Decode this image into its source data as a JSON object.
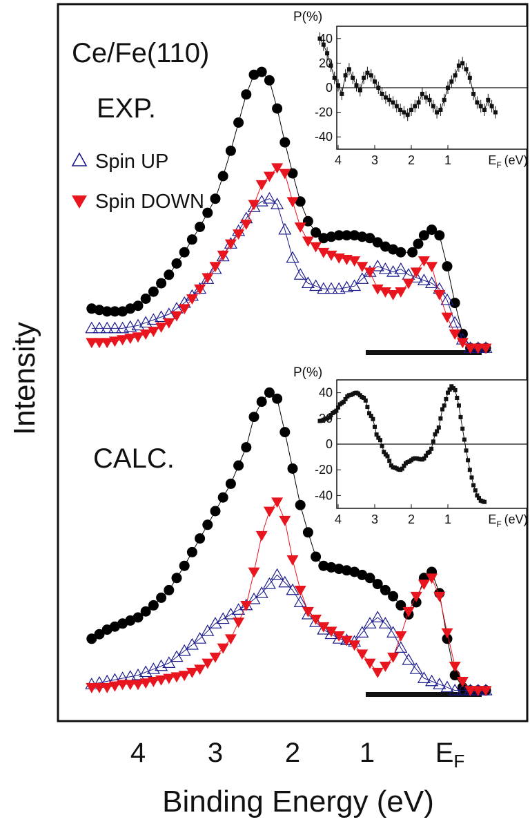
{
  "colors": {
    "total": "#000000",
    "spin_up": "#1a1a8c",
    "spin_down": "#e8141e",
    "axis": "#111111"
  },
  "main": {
    "ylabel": "Intensity",
    "xlabel": "Binding Energy (eV)",
    "xticks": [
      "4",
      "3",
      "2",
      "1"
    ],
    "ef_label": "E",
    "ef_sub": "F"
  },
  "top": {
    "sample_label": "Ce/Fe(110)",
    "label": "EXP.",
    "legend_up": "Spin UP",
    "legend_down": "Spin DOWN"
  },
  "bottom": {
    "label": "CALC."
  },
  "inset_exp": {
    "ylabel": "P(%)",
    "yticks": [
      "40",
      "20",
      "0",
      "-20",
      "-40"
    ],
    "xticks": [
      "4",
      "3",
      "2",
      "1"
    ],
    "ef_label": "E",
    "ef_sub": "F",
    "ef_unit": "(eV)"
  },
  "inset_calc": {
    "ylabel": "P(%)",
    "yticks": [
      "40",
      "20",
      "0",
      "-20",
      "-40"
    ],
    "xticks": [
      "4",
      "3",
      "2",
      "1"
    ],
    "ef_label": "E",
    "ef_sub": "F",
    "ef_unit": "(eV)"
  },
  "chart_data": [
    {
      "type": "scatter",
      "panel": "EXP.",
      "xlabel": "Binding Energy (eV)",
      "ylabel": "Intensity",
      "x_reversed": true,
      "xlim": [
        4.7,
        -0.5
      ],
      "ylim": [
        0,
        1
      ],
      "series": [
        {
          "name": "total",
          "marker": "circle",
          "x": [
            4.6,
            4.4,
            4.2,
            4.0,
            3.8,
            3.6,
            3.4,
            3.2,
            3.0,
            2.9,
            2.8,
            2.7,
            2.6,
            2.5,
            2.4,
            2.3,
            2.2,
            2.1,
            2.0,
            1.9,
            1.8,
            1.7,
            1.6,
            1.4,
            1.2,
            1.0,
            0.8,
            0.6,
            0.45,
            0.3,
            0.2,
            0.1,
            0.0,
            -0.1,
            -0.2,
            -0.3,
            -0.5
          ],
          "y": [
            0.15,
            0.14,
            0.14,
            0.16,
            0.21,
            0.27,
            0.35,
            0.44,
            0.54,
            0.62,
            0.71,
            0.81,
            0.91,
            0.98,
            0.99,
            0.96,
            0.86,
            0.74,
            0.63,
            0.53,
            0.46,
            0.42,
            0.4,
            0.41,
            0.41,
            0.4,
            0.37,
            0.35,
            0.35,
            0.41,
            0.43,
            0.41,
            0.3,
            0.17,
            0.06,
            0.01,
            0.01
          ]
        },
        {
          "name": "Spin UP",
          "marker": "triangle-up-open",
          "x": [
            4.6,
            4.4,
            4.2,
            4.0,
            3.8,
            3.6,
            3.4,
            3.2,
            3.0,
            2.8,
            2.6,
            2.5,
            2.4,
            2.3,
            2.2,
            2.1,
            2.0,
            1.9,
            1.8,
            1.6,
            1.4,
            1.2,
            1.0,
            0.9,
            0.8,
            0.7,
            0.6,
            0.5,
            0.4,
            0.3,
            0.2,
            0.1,
            0.0,
            -0.1,
            -0.2,
            -0.3,
            -0.5
          ],
          "y": [
            0.08,
            0.08,
            0.08,
            0.09,
            0.11,
            0.13,
            0.17,
            0.22,
            0.29,
            0.38,
            0.47,
            0.51,
            0.53,
            0.54,
            0.52,
            0.43,
            0.33,
            0.27,
            0.24,
            0.22,
            0.22,
            0.23,
            0.28,
            0.3,
            0.29,
            0.28,
            0.29,
            0.27,
            0.26,
            0.25,
            0.24,
            0.22,
            0.18,
            0.1,
            0.04,
            0.01,
            0.01
          ]
        },
        {
          "name": "Spin DOWN",
          "marker": "triangle-down-filled",
          "x": [
            4.6,
            4.4,
            4.2,
            4.0,
            3.8,
            3.6,
            3.4,
            3.2,
            3.0,
            2.8,
            2.6,
            2.5,
            2.4,
            2.3,
            2.2,
            2.1,
            2.0,
            1.9,
            1.8,
            1.6,
            1.4,
            1.2,
            1.0,
            0.9,
            0.8,
            0.7,
            0.6,
            0.5,
            0.4,
            0.3,
            0.2,
            0.1,
            0.0,
            -0.1,
            -0.2,
            -0.3,
            -0.5
          ],
          "y": [
            0.03,
            0.03,
            0.04,
            0.05,
            0.07,
            0.1,
            0.15,
            0.22,
            0.3,
            0.38,
            0.45,
            0.52,
            0.59,
            0.62,
            0.65,
            0.63,
            0.53,
            0.44,
            0.39,
            0.35,
            0.33,
            0.32,
            0.28,
            0.22,
            0.21,
            0.2,
            0.21,
            0.24,
            0.28,
            0.32,
            0.3,
            0.2,
            0.12,
            0.06,
            0.03,
            0.01,
            0.01
          ]
        }
      ]
    },
    {
      "type": "scatter",
      "panel": "CALC.",
      "xlabel": "Binding Energy (eV)",
      "ylabel": "Intensity",
      "x_reversed": true,
      "xlim": [
        4.7,
        -0.5
      ],
      "ylim": [
        0,
        1
      ],
      "series": [
        {
          "name": "total",
          "marker": "circle",
          "x": [
            4.6,
            4.4,
            4.2,
            4.0,
            3.8,
            3.6,
            3.4,
            3.2,
            3.0,
            2.8,
            2.6,
            2.5,
            2.4,
            2.3,
            2.2,
            2.1,
            2.0,
            1.9,
            1.8,
            1.7,
            1.6,
            1.4,
            1.2,
            1.0,
            0.9,
            0.8,
            0.7,
            0.6,
            0.5,
            0.4,
            0.3,
            0.2,
            0.1,
            0.0,
            -0.1,
            -0.2,
            -0.3,
            -0.5
          ],
          "y": [
            0.18,
            0.21,
            0.23,
            0.25,
            0.29,
            0.34,
            0.42,
            0.51,
            0.6,
            0.69,
            0.81,
            0.91,
            0.96,
            0.99,
            0.97,
            0.86,
            0.74,
            0.62,
            0.53,
            0.45,
            0.42,
            0.41,
            0.4,
            0.38,
            0.36,
            0.34,
            0.32,
            0.29,
            0.26,
            0.3,
            0.38,
            0.4,
            0.33,
            0.18,
            0.06,
            0.02,
            0.01,
            0.01
          ]
        },
        {
          "name": "Spin UP",
          "marker": "triangle-up-open",
          "x": [
            4.6,
            4.4,
            4.2,
            4.0,
            3.8,
            3.6,
            3.4,
            3.2,
            3.0,
            2.8,
            2.6,
            2.4,
            2.2,
            2.0,
            1.8,
            1.6,
            1.4,
            1.2,
            1.0,
            0.9,
            0.8,
            0.7,
            0.6,
            0.5,
            0.4,
            0.3,
            0.2,
            0.1,
            0.0,
            -0.1,
            -0.2,
            -0.3,
            -0.5
          ],
          "y": [
            0.03,
            0.04,
            0.05,
            0.06,
            0.08,
            0.1,
            0.14,
            0.18,
            0.23,
            0.26,
            0.29,
            0.33,
            0.39,
            0.34,
            0.26,
            0.21,
            0.18,
            0.17,
            0.23,
            0.25,
            0.23,
            0.2,
            0.15,
            0.11,
            0.08,
            0.05,
            0.04,
            0.03,
            0.02,
            0.01,
            0.01,
            0.01,
            0.01
          ]
        },
        {
          "name": "Spin DOWN",
          "marker": "triangle-down-filled",
          "x": [
            4.6,
            4.4,
            4.2,
            4.0,
            3.8,
            3.6,
            3.4,
            3.2,
            3.0,
            2.8,
            2.6,
            2.5,
            2.4,
            2.3,
            2.2,
            2.1,
            2.0,
            1.9,
            1.8,
            1.6,
            1.4,
            1.2,
            1.0,
            0.9,
            0.8,
            0.7,
            0.6,
            0.5,
            0.4,
            0.3,
            0.2,
            0.1,
            0.0,
            -0.1,
            -0.2,
            -0.3,
            -0.5
          ],
          "y": [
            0.02,
            0.02,
            0.03,
            0.03,
            0.04,
            0.05,
            0.06,
            0.08,
            0.12,
            0.18,
            0.29,
            0.4,
            0.52,
            0.6,
            0.63,
            0.57,
            0.44,
            0.34,
            0.27,
            0.22,
            0.19,
            0.16,
            0.1,
            0.07,
            0.09,
            0.12,
            0.19,
            0.27,
            0.32,
            0.36,
            0.38,
            0.32,
            0.2,
            0.09,
            0.04,
            0.01,
            0.01
          ]
        }
      ]
    },
    {
      "type": "scatter",
      "panel": "inset EXP.",
      "ylabel": "P(%)",
      "x_reversed": true,
      "xlim": [
        4.7,
        -0.6
      ],
      "ylim": [
        -48,
        48
      ],
      "series": [
        {
          "name": "P",
          "x": [
            4.5,
            4.4,
            4.3,
            4.2,
            4.1,
            4.0,
            3.9,
            3.8,
            3.7,
            3.6,
            3.5,
            3.4,
            3.3,
            3.2,
            3.1,
            3.0,
            2.9,
            2.8,
            2.7,
            2.6,
            2.5,
            2.4,
            2.3,
            2.2,
            2.1,
            2.0,
            1.9,
            1.8,
            1.7,
            1.6,
            1.5,
            1.4,
            1.3,
            1.2,
            1.1,
            1.0,
            0.9,
            0.8,
            0.7,
            0.6,
            0.5,
            0.4,
            0.3,
            0.2,
            0.1,
            0.0,
            -0.1,
            -0.2,
            -0.3
          ],
          "y": [
            40,
            35,
            28,
            18,
            8,
            2,
            -5,
            10,
            15,
            8,
            2,
            -2,
            8,
            12,
            10,
            5,
            0,
            -5,
            -8,
            -10,
            -12,
            -15,
            -18,
            -20,
            -22,
            -18,
            -15,
            -12,
            -5,
            -8,
            -10,
            -15,
            -20,
            -18,
            -10,
            0,
            5,
            10,
            18,
            20,
            15,
            8,
            -5,
            -12,
            -15,
            -18,
            -10,
            -15,
            -20
          ]
        }
      ]
    },
    {
      "type": "scatter",
      "panel": "inset CALC.",
      "ylabel": "P(%)",
      "x_reversed": true,
      "xlim": [
        4.7,
        -0.6
      ],
      "ylim": [
        -48,
        48
      ],
      "series": [
        {
          "name": "P",
          "x": [
            4.5,
            4.3,
            4.1,
            3.9,
            3.7,
            3.5,
            3.3,
            3.1,
            2.9,
            2.7,
            2.5,
            2.3,
            2.1,
            1.9,
            1.7,
            1.5,
            1.3,
            1.1,
            1.0,
            0.9,
            0.8,
            0.7,
            0.6,
            0.5,
            0.4,
            0.3,
            0.2,
            0.1,
            0.0
          ],
          "y": [
            18,
            20,
            25,
            32,
            38,
            40,
            36,
            22,
            5,
            -8,
            -18,
            -20,
            -14,
            -11,
            -12,
            -6,
            10,
            30,
            40,
            45,
            42,
            30,
            12,
            -5,
            -20,
            -32,
            -40,
            -44,
            -45
          ]
        }
      ]
    }
  ]
}
